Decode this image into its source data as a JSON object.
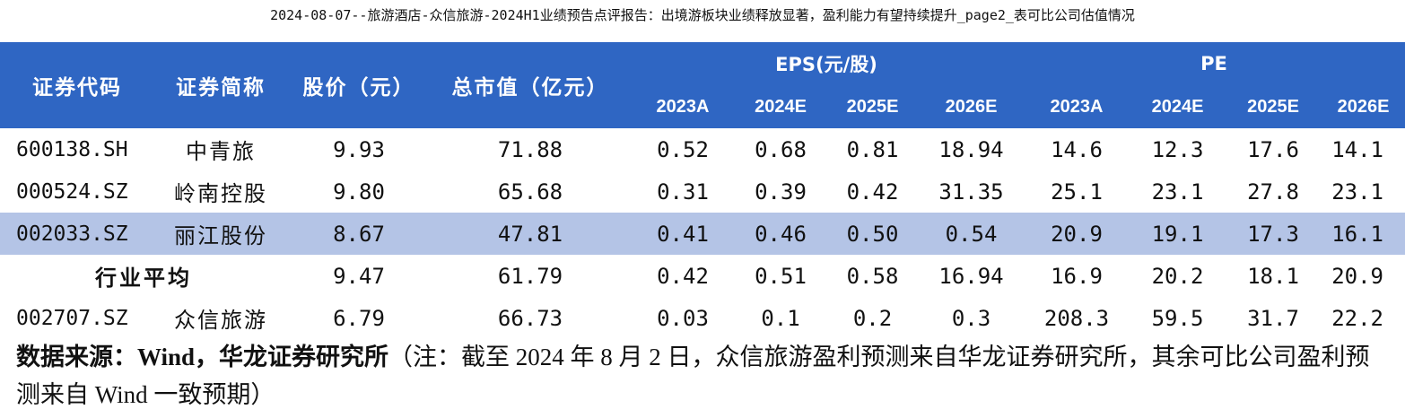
{
  "title": "2024-08-07--旅游酒店-众信旅游-2024H1业绩预告点评报告：出境游板块业绩释放显著，盈利能力有望持续提升_page2_表可比公司估值情况",
  "table": {
    "headers": {
      "code": "证券代码",
      "name": "证券简称",
      "price": "股价（元）",
      "mcap": "总市值（亿元）",
      "eps_group": "EPS(元/股)",
      "pe_group": "PE",
      "eps_years": [
        "2023A",
        "2024E",
        "2025E",
        "2026E"
      ],
      "pe_years": [
        "2023A",
        "2024E",
        "2025E",
        "2026E"
      ]
    },
    "rows": [
      {
        "code": "600138.SH",
        "name": "中青旅",
        "price": "9.93",
        "mcap": "71.88",
        "eps": [
          "0.52",
          "0.68",
          "0.81",
          "18.94"
        ],
        "pe": [
          "14.6",
          "12.3",
          "17.6",
          "14.1"
        ]
      },
      {
        "code": "000524.SZ",
        "name": "岭南控股",
        "price": "9.80",
        "mcap": "65.68",
        "eps": [
          "0.31",
          "0.39",
          "0.42",
          "31.35"
        ],
        "pe": [
          "25.1",
          "23.1",
          "27.8",
          "23.1"
        ]
      },
      {
        "code": "002033.SZ",
        "name": "丽江股份",
        "price": "8.67",
        "mcap": "47.81",
        "eps": [
          "0.41",
          "0.46",
          "0.50",
          "0.54"
        ],
        "pe": [
          "20.9",
          "19.1",
          "17.3",
          "16.1"
        ]
      }
    ],
    "average": {
      "label": "行业平均",
      "price": "9.47",
      "mcap": "61.79",
      "eps": [
        "0.42",
        "0.51",
        "0.58",
        "16.94"
      ],
      "pe": [
        "16.9",
        "20.2",
        "18.1",
        "20.9"
      ]
    },
    "target": {
      "code": "002707.SZ",
      "name": "众信旅游",
      "price": "6.79",
      "mcap": "66.73",
      "eps": [
        "0.03",
        "0.1",
        "0.2",
        "0.3"
      ],
      "pe": [
        "208.3",
        "59.5",
        "31.7",
        "22.2"
      ]
    }
  },
  "source": {
    "label": "数据来源：Wind，华龙证券研究所",
    "note": "（注：截至 2024 年 8 月 2 日，众信旅游盈利预测来自华龙证券研究所，其余可比公司盈利预测来自 Wind 一致预期）"
  },
  "colors": {
    "header_bg": "#2f66c3",
    "highlight_row": "#b4c4e6"
  }
}
